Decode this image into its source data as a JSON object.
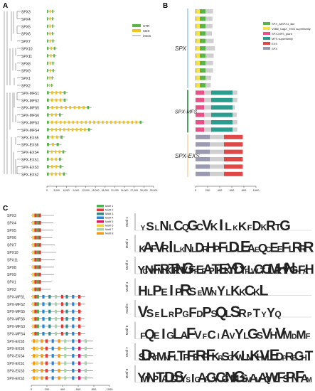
{
  "panels": {
    "a": "A",
    "b": "B",
    "c": "C"
  },
  "genes_ab": [
    "SPX3",
    "SPX4",
    "SPX5",
    "SPX6",
    "SPX7",
    "SPX10",
    "SPX11",
    "SPX8",
    "SPX9",
    "SPX1",
    "SPX2",
    "SPX-MFS1",
    "SPX-MFS2",
    "SPX-MFS5",
    "SPX-MFS6",
    "SPX-MFS3",
    "SPX-MFS4",
    "SPX-EXS5",
    "SPX-EXS6",
    "SPX-EXS4",
    "SPX-EXS1",
    "SPX-EXS3",
    "SPX-EXS2"
  ],
  "panel_a": {
    "legend": [
      {
        "label": "UTR",
        "color": "#5ab44a"
      },
      {
        "label": "CDS",
        "color": "#f0c419"
      },
      {
        "label": "intron",
        "color": "#777777"
      }
    ],
    "axis_ticks": [
      "0",
      "3,000",
      "6,000",
      "9,000",
      "12,000",
      "15,000",
      "18,000",
      "21,000",
      "24,000",
      "27,000",
      "30,000",
      "33,000"
    ],
    "gene_spans": [
      2400,
      2300,
      2400,
      2300,
      2500,
      3200,
      3000,
      2500,
      2600,
      2200,
      2000,
      6500,
      6500,
      13800,
      5000,
      30000,
      14000,
      5600,
      4500,
      6000,
      5000,
      5200,
      6200
    ]
  },
  "panel_b": {
    "legend": [
      {
        "label": "SPX_AtSPX1_like",
        "color": "#5ab44a"
      },
      {
        "label": "VirB8_CagX_TrbG superfamily",
        "color": "#f4e44a"
      },
      {
        "label": "SPX-MFS_plant",
        "color": "#e8508a"
      },
      {
        "label": "MFS superfamily",
        "color": "#2a9d8f"
      },
      {
        "label": "EXS",
        "color": "#e04848"
      },
      {
        "label": "SPX",
        "color": "#9a9ab0"
      }
    ],
    "group_labels": [
      "SPX",
      "SPX-MFS",
      "SPX-EXS"
    ],
    "group_colors": [
      "#9fd0e6",
      "#1f8a3a",
      "#f0d6a8"
    ],
    "axis_ticks": [
      "0",
      "200",
      "400",
      "600",
      "800",
      "1000"
    ],
    "protein_lengths": [
      290,
      280,
      280,
      270,
      300,
      320,
      300,
      290,
      290,
      260,
      250,
      690,
      690,
      650,
      680,
      690,
      690,
      790,
      790,
      790,
      790,
      790,
      790
    ]
  },
  "panel_c": {
    "genes": [
      "SPX3",
      "SPX4",
      "SPX5",
      "SPX6",
      "SPX7",
      "SPX10",
      "SPX11",
      "SPX8",
      "SPX9",
      "SPX1",
      "SPX2",
      "SPX-MFS1",
      "SPX-MFS2",
      "SPX-MFS5",
      "SPX-MFS6",
      "SPX-MFS3",
      "SPX-MFS4",
      "SPX-EXS5",
      "SPX-EXS6",
      "SPX-EXS4",
      "SPX-EXS1",
      "SPX-EXS3",
      "SPX-EXS2"
    ],
    "motif_legend": [
      {
        "label": "Motif 1",
        "color": "#4caf50"
      },
      {
        "label": "Motif 2",
        "color": "#e53935"
      },
      {
        "label": "Motif 3",
        "color": "#2e8b8b"
      },
      {
        "label": "Motif 4",
        "color": "#1e88e5"
      },
      {
        "label": "Motif 5",
        "color": "#d81b60"
      },
      {
        "label": "Motif 6",
        "color": "#f4d03f"
      },
      {
        "label": "Motif 7",
        "color": "#a5d6a7"
      },
      {
        "label": "Motif 8",
        "color": "#ff9800"
      }
    ],
    "axis_ticks": [
      "0",
      "200",
      "400",
      "600",
      "800",
      "1000"
    ],
    "protein_lengths": [
      290,
      280,
      280,
      270,
      300,
      320,
      300,
      290,
      290,
      260,
      250,
      690,
      690,
      650,
      680,
      690,
      690,
      790,
      790,
      790,
      790,
      790,
      790
    ],
    "logos": [
      {
        "name": "Motif 1",
        "seq": "YSLNLCQGCVKILKKFDKRTG"
      },
      {
        "name": "Motif 2",
        "seq": "KAFVRILKNLDRHPFLDLEAEQCEEFLRRR"
      },
      {
        "name": "Motif 3",
        "seq": "YGNWFMRKTRNVGFFEFAPTKEKYYDYFLWCTCLMRHVNGHFAH"
      },
      {
        "name": "Motif 4",
        "seq": "HLPEIPRSEWNYLKKCKL"
      },
      {
        "name": "Motif 5",
        "seq": "VSELRPGFDPSQLSRPTYYQ"
      },
      {
        "name": "Motif 6",
        "seq": "FQEIGLAFVFCIAVYLGSVHVMDMF"
      },
      {
        "name": "Motif 7",
        "seq": "SDRPMNFLTPFERFFKRSGKWLMKHVLEDPREGHT"
      },
      {
        "name": "Motif 8",
        "seq": "YWNPTADDSYSIGAAGYCGNMGSMAVAQWLFSPNFAM"
      }
    ]
  }
}
